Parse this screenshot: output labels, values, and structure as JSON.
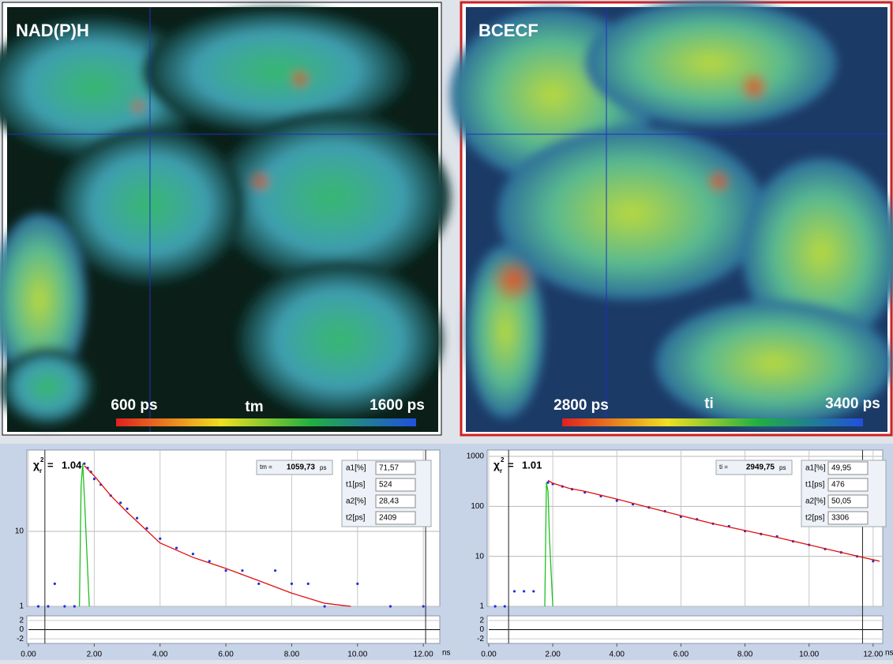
{
  "images": [
    {
      "label": "NAD(P)H",
      "scale": {
        "min": "600 ps",
        "name": "tm",
        "max": "1600 ps"
      }
    },
    {
      "label": "BCECF",
      "scale": {
        "min": "2800 ps",
        "name": "ti",
        "max": "3400 ps"
      }
    }
  ],
  "plots": [
    {
      "type": "scatter",
      "log_y": true,
      "chi": {
        "symbol": "χ",
        "sub": "r",
        "sup": "2",
        "sep": "=",
        "value": "1.04"
      },
      "mean": {
        "label": "tm =",
        "value": "1059,73",
        "unit": "ps"
      },
      "params": [
        {
          "label": "a1[%]",
          "value": "71,57"
        },
        {
          "label": "t1[ps]",
          "value": "524"
        },
        {
          "label": "a2[%]",
          "value": "28,43"
        },
        {
          "label": "t2[ps]",
          "value": "2409"
        }
      ],
      "x_unit": "ns",
      "xlim": [
        0,
        12.5
      ],
      "xticks": [
        {
          "value": 0,
          "label": "0.00"
        },
        {
          "value": 2,
          "label": "2.00"
        },
        {
          "value": 4,
          "label": "4.00"
        },
        {
          "value": 6,
          "label": "6.00"
        },
        {
          "value": 8,
          "label": "8.00"
        },
        {
          "value": 10,
          "label": "10.00"
        },
        {
          "value": 12,
          "label": "12.00"
        }
      ],
      "ylim": [
        1,
        100
      ],
      "yticks": [
        1,
        10
      ],
      "residual_ylim": [
        -3,
        3
      ],
      "residual_yticks": [
        2,
        0,
        -2
      ],
      "cursors": [
        0.5,
        12.07
      ],
      "points": {
        "color": "#1f2fd8",
        "x": [
          0.3,
          0.6,
          0.8,
          1.1,
          1.4,
          1.7,
          1.8,
          1.9,
          2.0,
          2.2,
          2.5,
          2.8,
          3.0,
          3.3,
          3.6,
          4.0,
          4.5,
          5.0,
          5.5,
          6.0,
          6.5,
          7.0,
          7.5,
          8.0,
          8.5,
          9.0,
          10.0,
          11.0,
          12.0
        ],
        "y": [
          1,
          1,
          2,
          1,
          1,
          80,
          70,
          62,
          50,
          42,
          30,
          24,
          20,
          15,
          11,
          8,
          6,
          5,
          4,
          3,
          3,
          2,
          3,
          2,
          2,
          1,
          2,
          1,
          1
        ]
      },
      "fit": {
        "color": "#e01010",
        "x": [
          1.7,
          2.0,
          2.5,
          3.0,
          4.0,
          5.0,
          6.0,
          7.0,
          8.0,
          9.0,
          9.8
        ],
        "y": [
          75,
          55,
          30,
          18,
          7,
          4.5,
          3.2,
          2.2,
          1.5,
          1.1,
          1
        ]
      },
      "irf": {
        "color": "#20c020",
        "x": [
          1.55,
          1.6,
          1.65,
          1.7,
          1.8,
          1.85
        ],
        "y": [
          1,
          40,
          80,
          30,
          3,
          1
        ]
      }
    },
    {
      "type": "scatter",
      "log_y": true,
      "chi": {
        "symbol": "χ",
        "sub": "r",
        "sup": "2",
        "sep": "=",
        "value": "1.01"
      },
      "mean": {
        "label": "ti =",
        "value": "2949,75",
        "unit": "ps"
      },
      "params": [
        {
          "label": "a1[%]",
          "value": "49,95"
        },
        {
          "label": "t1[ps]",
          "value": "476"
        },
        {
          "label": "a2[%]",
          "value": "50,05"
        },
        {
          "label": "t2[ps]",
          "value": "3306"
        }
      ],
      "x_unit": "ns",
      "xlim": [
        0,
        12.3
      ],
      "xticks": [
        {
          "value": 0,
          "label": "0.00"
        },
        {
          "value": 2,
          "label": "2.00"
        },
        {
          "value": 4,
          "label": "4.00"
        },
        {
          "value": 6,
          "label": "6.00"
        },
        {
          "value": 8,
          "label": "8.00"
        },
        {
          "value": 10,
          "label": "10.00"
        },
        {
          "value": 12,
          "label": "12.00"
        }
      ],
      "ylim": [
        1,
        1000
      ],
      "yticks": [
        1,
        10,
        100,
        1000
      ],
      "residual_ylim": [
        -3,
        3
      ],
      "residual_yticks": [
        2,
        0,
        -2
      ],
      "cursors": [
        0.62,
        11.67
      ],
      "points": {
        "color": "#1f2fd8",
        "x": [
          0.2,
          0.5,
          0.8,
          1.1,
          1.4,
          1.85,
          2.0,
          2.3,
          2.6,
          3.0,
          3.5,
          4.0,
          4.5,
          5.0,
          5.5,
          6.0,
          6.5,
          7.0,
          7.5,
          8.0,
          8.5,
          9.0,
          9.5,
          10.0,
          10.5,
          11.0,
          11.5,
          12.0
        ],
        "y": [
          1,
          1,
          2,
          2,
          2,
          300,
          280,
          250,
          220,
          190,
          160,
          130,
          110,
          95,
          80,
          62,
          55,
          45,
          40,
          32,
          28,
          25,
          20,
          17,
          14,
          12,
          10,
          8
        ]
      },
      "fit": {
        "color": "#e01010",
        "x": [
          1.85,
          2.0,
          2.5,
          3.0,
          4.0,
          5.0,
          6.0,
          7.0,
          8.0,
          9.0,
          10.0,
          11.0,
          12.2
        ],
        "y": [
          330,
          290,
          230,
          200,
          140,
          95,
          65,
          45,
          33,
          24,
          17,
          12,
          8
        ]
      },
      "irf": {
        "color": "#20c020",
        "x": [
          1.75,
          1.8,
          1.85,
          1.9,
          2.0
        ],
        "y": [
          1,
          300,
          200,
          20,
          1
        ]
      }
    }
  ]
}
